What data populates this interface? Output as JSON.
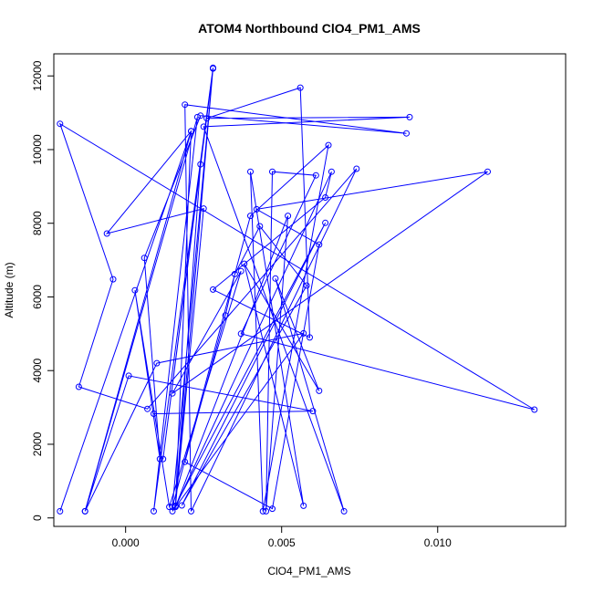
{
  "chart_data": {
    "type": "line",
    "title": "ATOM4 Northbound ClO4_PM1_AMS",
    "xlabel": "ClO4_PM1_AMS",
    "ylabel": "Altitude (m)",
    "xlim": [
      -0.0023,
      0.0141
    ],
    "ylim": [
      -230,
      12600
    ],
    "xticks": [
      0.0,
      0.005,
      0.01
    ],
    "xtick_labels": [
      "0.000",
      "0.005",
      "0.010"
    ],
    "yticks": [
      0,
      2000,
      4000,
      6000,
      8000,
      10000,
      12000
    ],
    "ytick_labels": [
      "0",
      "2000",
      "4000",
      "6000",
      "8000",
      "10000",
      "12000"
    ],
    "grid": false,
    "series": [
      {
        "color": "#0000ff",
        "marker": "open-circle",
        "points": [
          [
            -0.0021,
            180
          ],
          [
            0.0021,
            10500
          ],
          [
            -0.0013,
            180
          ],
          [
            0.0023,
            10880
          ],
          [
            0.0009,
            180
          ],
          [
            0.0028,
            12220
          ],
          [
            0.0016,
            330
          ],
          [
            0.0025,
            8400
          ],
          [
            -0.0006,
            7720
          ],
          [
            0.0021,
            10500
          ],
          [
            0.0016,
            330
          ],
          [
            0.0024,
            9600
          ],
          [
            0.0012,
            1600
          ],
          [
            0.0028,
            12200
          ],
          [
            0.0015,
            300
          ],
          [
            0.004,
            8200
          ],
          [
            0.0065,
            10120
          ],
          [
            0.0044,
            180
          ],
          [
            0.004,
            9400
          ],
          [
            0.0057,
            330
          ],
          [
            0.0038,
            6900
          ],
          [
            0.0062,
            3450
          ],
          [
            0.0048,
            6500
          ],
          [
            0.007,
            180
          ],
          [
            0.0025,
            10620
          ],
          [
            0.0091,
            10880
          ],
          [
            0.0026,
            10850
          ],
          [
            0.0056,
            11680
          ],
          [
            0.0059,
            4900
          ],
          [
            0.0028,
            6200
          ],
          [
            0.0064,
            8700
          ],
          [
            0.0066,
            9400
          ],
          [
            0.0016,
            300
          ],
          [
            0.0052,
            8200
          ],
          [
            0.0045,
            180
          ],
          [
            0.0047,
            9400
          ],
          [
            0.0061,
            9300
          ],
          [
            0.0037,
            5000
          ],
          [
            0.0131,
            2940
          ],
          [
            -0.0021,
            10700
          ],
          [
            -0.0004,
            6480
          ],
          [
            -0.0015,
            3560
          ],
          [
            0.0007,
            2960
          ],
          [
            0.0074,
            9480
          ],
          [
            0.0021,
            180
          ],
          [
            0.0019,
            11220
          ],
          [
            0.009,
            10440
          ],
          [
            0.0024,
            10920
          ],
          [
            0.0006,
            7060
          ],
          [
            0.0011,
            1600
          ],
          [
            0.0003,
            6180
          ],
          [
            0.0014,
            300
          ],
          [
            0.0037,
            6700
          ],
          [
            0.0015,
            3380
          ],
          [
            0.0116,
            9400
          ],
          [
            0.0042,
            8380
          ],
          [
            0.0062,
            7420
          ],
          [
            0.0047,
            250
          ],
          [
            0.0019,
            1520
          ],
          [
            0.0032,
            5500
          ],
          [
            0.0035,
            6620
          ],
          [
            0.0043,
            7920
          ],
          [
            0.0058,
            6310
          ],
          [
            0.0018,
            340
          ],
          [
            0.0064,
            8010
          ],
          [
            0.0015,
            180
          ],
          [
            0.0057,
            5010
          ],
          [
            0.001,
            4200
          ],
          [
            -0.0013,
            180
          ],
          [
            0.0001,
            3860
          ],
          [
            0.006,
            2900
          ],
          [
            0.0009,
            2830
          ]
        ]
      }
    ]
  }
}
